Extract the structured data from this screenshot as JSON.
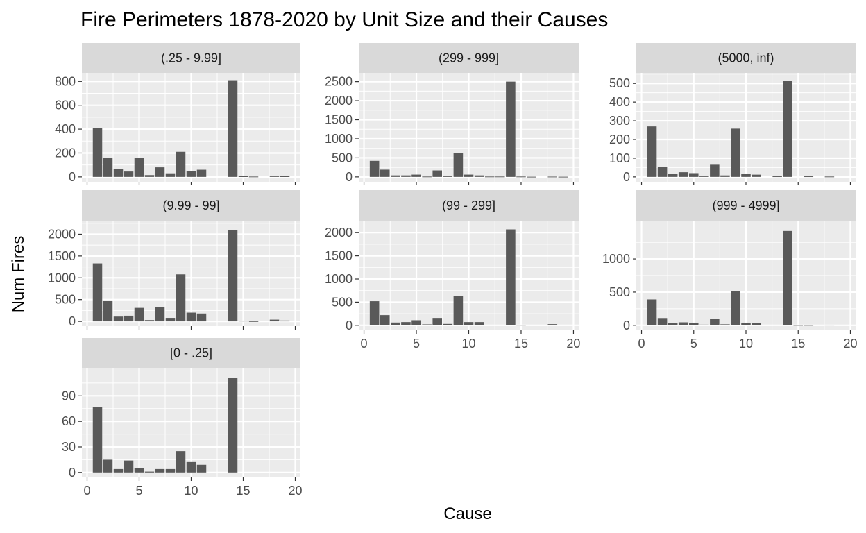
{
  "chart_data": {
    "type": "bar",
    "title": "Fire Perimeters 1878-2020 by Unit Size and their Causes",
    "xlabel": "Cause",
    "ylabel": "Num Fires",
    "xlim": [
      0,
      20
    ],
    "x_ticks": [
      0,
      5,
      10,
      15,
      20
    ],
    "grid": true,
    "panels": [
      {
        "label": "(.25 - 9.99]",
        "x_axis_shown": false,
        "ylim": [
          0,
          830
        ],
        "y_ticks": [
          0,
          200,
          400,
          600,
          800
        ],
        "bars": [
          {
            "x": 1,
            "y": 410
          },
          {
            "x": 2,
            "y": 160
          },
          {
            "x": 3,
            "y": 65
          },
          {
            "x": 4,
            "y": 45
          },
          {
            "x": 5,
            "y": 160
          },
          {
            "x": 6,
            "y": 15
          },
          {
            "x": 7,
            "y": 80
          },
          {
            "x": 8,
            "y": 30
          },
          {
            "x": 9,
            "y": 210
          },
          {
            "x": 10,
            "y": 50
          },
          {
            "x": 11,
            "y": 60
          },
          {
            "x": 12,
            "y": 0
          },
          {
            "x": 13,
            "y": 0
          },
          {
            "x": 14,
            "y": 810
          },
          {
            "x": 15,
            "y": 5
          },
          {
            "x": 16,
            "y": 3
          },
          {
            "x": 17,
            "y": 0
          },
          {
            "x": 18,
            "y": 8
          },
          {
            "x": 19,
            "y": 5
          }
        ]
      },
      {
        "label": "(299 - 999]",
        "x_axis_shown": false,
        "ylim": [
          0,
          2600
        ],
        "y_ticks": [
          0,
          500,
          1000,
          1500,
          2000,
          2500
        ],
        "bars": [
          {
            "x": 1,
            "y": 420
          },
          {
            "x": 2,
            "y": 190
          },
          {
            "x": 3,
            "y": 40
          },
          {
            "x": 4,
            "y": 40
          },
          {
            "x": 5,
            "y": 60
          },
          {
            "x": 6,
            "y": 10
          },
          {
            "x": 7,
            "y": 170
          },
          {
            "x": 8,
            "y": 30
          },
          {
            "x": 9,
            "y": 620
          },
          {
            "x": 10,
            "y": 60
          },
          {
            "x": 11,
            "y": 40
          },
          {
            "x": 12,
            "y": 10
          },
          {
            "x": 13,
            "y": 10
          },
          {
            "x": 14,
            "y": 2500
          },
          {
            "x": 15,
            "y": 10
          },
          {
            "x": 16,
            "y": 5
          },
          {
            "x": 17,
            "y": 0
          },
          {
            "x": 18,
            "y": 8
          },
          {
            "x": 19,
            "y": 5
          }
        ]
      },
      {
        "label": "(5000, inf)",
        "x_axis_shown": false,
        "ylim": [
          0,
          530
        ],
        "y_ticks": [
          0,
          100,
          200,
          300,
          400,
          500
        ],
        "bars": [
          {
            "x": 1,
            "y": 270
          },
          {
            "x": 2,
            "y": 52
          },
          {
            "x": 3,
            "y": 15
          },
          {
            "x": 4,
            "y": 25
          },
          {
            "x": 5,
            "y": 20
          },
          {
            "x": 6,
            "y": 5
          },
          {
            "x": 7,
            "y": 65
          },
          {
            "x": 8,
            "y": 8
          },
          {
            "x": 9,
            "y": 258
          },
          {
            "x": 10,
            "y": 18
          },
          {
            "x": 11,
            "y": 12
          },
          {
            "x": 12,
            "y": 0
          },
          {
            "x": 13,
            "y": 3
          },
          {
            "x": 14,
            "y": 512
          },
          {
            "x": 15,
            "y": 0
          },
          {
            "x": 16,
            "y": 3
          },
          {
            "x": 17,
            "y": 0
          },
          {
            "x": 18,
            "y": 2
          },
          {
            "x": 19,
            "y": 0
          }
        ]
      },
      {
        "label": "(9.99 - 99]",
        "x_axis_shown": false,
        "ylim": [
          0,
          2200
        ],
        "y_ticks": [
          0,
          500,
          1000,
          1500,
          2000
        ],
        "bars": [
          {
            "x": 1,
            "y": 1330
          },
          {
            "x": 2,
            "y": 480
          },
          {
            "x": 3,
            "y": 110
          },
          {
            "x": 4,
            "y": 130
          },
          {
            "x": 5,
            "y": 310
          },
          {
            "x": 6,
            "y": 30
          },
          {
            "x": 7,
            "y": 320
          },
          {
            "x": 8,
            "y": 80
          },
          {
            "x": 9,
            "y": 1080
          },
          {
            "x": 10,
            "y": 200
          },
          {
            "x": 11,
            "y": 180
          },
          {
            "x": 12,
            "y": 0
          },
          {
            "x": 13,
            "y": 0
          },
          {
            "x": 14,
            "y": 2100
          },
          {
            "x": 15,
            "y": 15
          },
          {
            "x": 16,
            "y": 5
          },
          {
            "x": 17,
            "y": 0
          },
          {
            "x": 18,
            "y": 40
          },
          {
            "x": 19,
            "y": 20
          }
        ]
      },
      {
        "label": "(99 - 299]",
        "x_axis_shown": true,
        "ylim": [
          0,
          2150
        ],
        "y_ticks": [
          0,
          500,
          1000,
          1500,
          2000
        ],
        "bars": [
          {
            "x": 1,
            "y": 520
          },
          {
            "x": 2,
            "y": 220
          },
          {
            "x": 3,
            "y": 60
          },
          {
            "x": 4,
            "y": 70
          },
          {
            "x": 5,
            "y": 110
          },
          {
            "x": 6,
            "y": 20
          },
          {
            "x": 7,
            "y": 160
          },
          {
            "x": 8,
            "y": 30
          },
          {
            "x": 9,
            "y": 630
          },
          {
            "x": 10,
            "y": 70
          },
          {
            "x": 11,
            "y": 70
          },
          {
            "x": 12,
            "y": 0
          },
          {
            "x": 13,
            "y": 0
          },
          {
            "x": 14,
            "y": 2070
          },
          {
            "x": 15,
            "y": 10
          },
          {
            "x": 16,
            "y": 0
          },
          {
            "x": 17,
            "y": 0
          },
          {
            "x": 18,
            "y": 25
          },
          {
            "x": 19,
            "y": 0
          }
        ]
      },
      {
        "label": "(999 - 4999]",
        "x_axis_shown": true,
        "ylim": [
          0,
          1500
        ],
        "y_ticks": [
          0,
          500,
          1000
        ],
        "bars": [
          {
            "x": 1,
            "y": 390
          },
          {
            "x": 2,
            "y": 110
          },
          {
            "x": 3,
            "y": 35
          },
          {
            "x": 4,
            "y": 45
          },
          {
            "x": 5,
            "y": 40
          },
          {
            "x": 6,
            "y": 10
          },
          {
            "x": 7,
            "y": 100
          },
          {
            "x": 8,
            "y": 15
          },
          {
            "x": 9,
            "y": 510
          },
          {
            "x": 10,
            "y": 40
          },
          {
            "x": 11,
            "y": 30
          },
          {
            "x": 12,
            "y": 0
          },
          {
            "x": 13,
            "y": 0
          },
          {
            "x": 14,
            "y": 1420
          },
          {
            "x": 15,
            "y": 5
          },
          {
            "x": 16,
            "y": 5
          },
          {
            "x": 17,
            "y": 0
          },
          {
            "x": 18,
            "y": 8
          },
          {
            "x": 19,
            "y": 0
          }
        ]
      },
      {
        "label": "[0 - .25]",
        "x_axis_shown": true,
        "ylim": [
          0,
          117
        ],
        "y_ticks": [
          0,
          30,
          60,
          90
        ],
        "bars": [
          {
            "x": 1,
            "y": 77
          },
          {
            "x": 2,
            "y": 15
          },
          {
            "x": 3,
            "y": 4
          },
          {
            "x": 4,
            "y": 14
          },
          {
            "x": 5,
            "y": 5
          },
          {
            "x": 6,
            "y": 1
          },
          {
            "x": 7,
            "y": 4
          },
          {
            "x": 8,
            "y": 4
          },
          {
            "x": 9,
            "y": 25
          },
          {
            "x": 10,
            "y": 13
          },
          {
            "x": 11,
            "y": 9
          },
          {
            "x": 12,
            "y": 0
          },
          {
            "x": 13,
            "y": 0
          },
          {
            "x": 14,
            "y": 111
          },
          {
            "x": 15,
            "y": 0
          },
          {
            "x": 16,
            "y": 0
          },
          {
            "x": 17,
            "y": 0
          },
          {
            "x": 18,
            "y": 0
          },
          {
            "x": 19,
            "y": 0
          }
        ]
      }
    ]
  },
  "colors": {
    "panel_background": "#ebebeb",
    "strip_background": "#d9d9d9",
    "grid": "#ffffff",
    "bar": "#595959",
    "tick_text": "#4d4d4d"
  }
}
